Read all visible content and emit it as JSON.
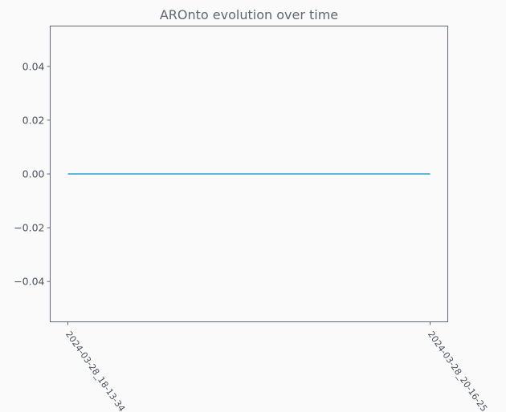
{
  "chart_data": {
    "type": "line",
    "title": "AROnto evolution over time",
    "xlabel": "",
    "ylabel": "",
    "categories": [
      "2024-03-28_18-13-34",
      "2024-03-28_20-16-25"
    ],
    "series": [
      {
        "values": [
          0.0,
          0.0
        ]
      }
    ],
    "ylim": [
      -0.055,
      0.055
    ],
    "yticks": [
      "0.04",
      "0.02",
      "0.00",
      "−0.02",
      "−0.04"
    ],
    "ytick_values": [
      0.04,
      0.02,
      0.0,
      -0.02,
      -0.04
    ],
    "grid": false,
    "colors": {
      "line": "#2b9fd8",
      "axes": "#5f6774",
      "text": "#4a5160",
      "background": "#fafafa"
    }
  }
}
